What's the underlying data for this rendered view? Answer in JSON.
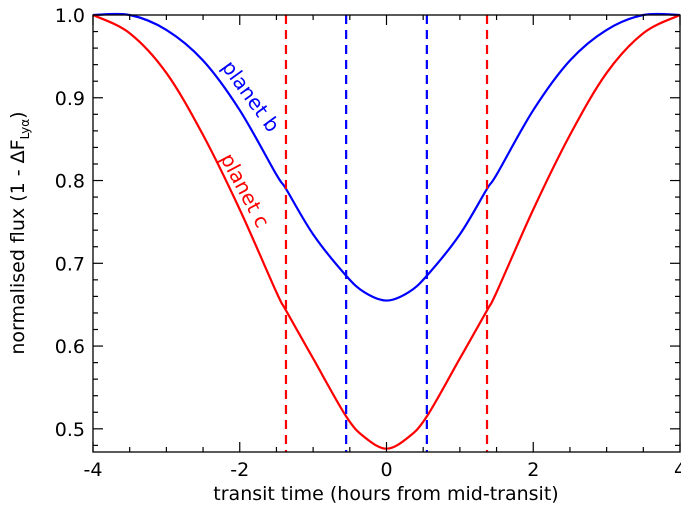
{
  "chart_data": {
    "type": "line",
    "xlabel": "transit time (hours from mid-transit)",
    "ylabel_main": "normalised flux (1 - ΔF",
    "ylabel_sub": "Lyα",
    "ylabel_close": ")",
    "xlim": [
      -4,
      4
    ],
    "ylim": [
      0.472,
      1.0
    ],
    "xticks": [
      -4,
      -2,
      0,
      2,
      4
    ],
    "yticks": [
      0.5,
      0.6,
      0.7,
      0.8,
      0.9,
      1.0
    ],
    "ytick_labels": [
      "0.5",
      "0.6",
      "0.7",
      "0.8",
      "0.9",
      "1.0"
    ],
    "xtick_labels": [
      "-4",
      "-2",
      "0",
      "2",
      "4"
    ],
    "grid": false,
    "series": [
      {
        "name": "planet b",
        "color": "#0000ff",
        "x": [
          -4.0,
          -3.5,
          -3.0,
          -2.5,
          -2.0,
          -1.5,
          -1.37,
          -1.0,
          -0.55,
          -0.3,
          0.0,
          0.3,
          0.55,
          1.0,
          1.37,
          1.5,
          2.0,
          2.5,
          3.0,
          3.5,
          4.0
        ],
        "y": [
          1.0,
          1.0,
          0.982,
          0.945,
          0.885,
          0.807,
          0.79,
          0.735,
          0.685,
          0.665,
          0.655,
          0.665,
          0.685,
          0.735,
          0.79,
          0.807,
          0.885,
          0.945,
          0.982,
          1.0,
          1.0
        ]
      },
      {
        "name": "planet c",
        "color": "#ff0000",
        "x": [
          -4.0,
          -3.5,
          -3.0,
          -2.5,
          -2.0,
          -1.5,
          -1.37,
          -1.0,
          -0.55,
          -0.3,
          0.0,
          0.3,
          0.55,
          1.0,
          1.37,
          1.5,
          2.0,
          2.5,
          3.0,
          3.5,
          4.0
        ],
        "y": [
          1.0,
          0.978,
          0.93,
          0.855,
          0.765,
          0.665,
          0.643,
          0.585,
          0.515,
          0.49,
          0.476,
          0.49,
          0.515,
          0.585,
          0.643,
          0.665,
          0.765,
          0.855,
          0.93,
          0.978,
          1.0
        ]
      }
    ],
    "vlines": [
      {
        "x": -1.37,
        "color": "#ff0000"
      },
      {
        "x": 1.37,
        "color": "#ff0000"
      },
      {
        "x": -0.55,
        "color": "#0000ff"
      },
      {
        "x": 0.55,
        "color": "#0000ff"
      }
    ],
    "annotations": [
      {
        "text": "planet b",
        "color": "#0000ff"
      },
      {
        "text": "planet c",
        "color": "#ff0000"
      }
    ]
  }
}
